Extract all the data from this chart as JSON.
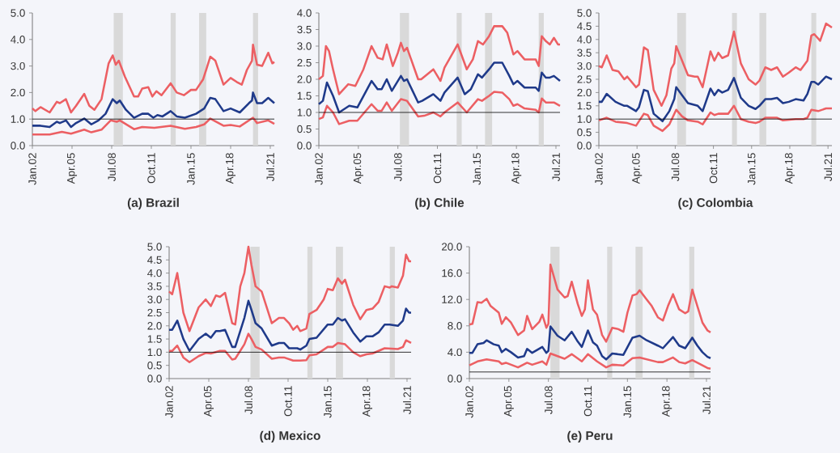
{
  "chart_data": [
    {
      "type": "line",
      "title": "(a) Brazil",
      "xlim": [
        "2002-01",
        "2021-11"
      ],
      "ylim": [
        0,
        5
      ],
      "xticks": [
        {
          "value": "2002-01",
          "label": "Jan.02"
        },
        {
          "value": "2005-04",
          "label": "Apr.05"
        },
        {
          "value": "2008-07",
          "label": "Jul.08"
        },
        {
          "value": "2011-10",
          "label": "Oct.11"
        },
        {
          "value": "2015-01",
          "label": "Jan.15"
        },
        {
          "value": "2018-04",
          "label": "Apr.18"
        },
        {
          "value": "2021-07",
          "label": "Jul.21"
        }
      ],
      "yticks": [
        {
          "value": 0,
          "label": "0.0"
        },
        {
          "value": 1,
          "label": "1.0"
        },
        {
          "value": 2,
          "label": "2.0"
        },
        {
          "value": 3,
          "label": "3.0"
        },
        {
          "value": 4,
          "label": "4.0"
        },
        {
          "value": 5,
          "label": "5.0"
        }
      ],
      "ref_lines": [
        {
          "axis": "y",
          "value": 1,
          "color": "#000000"
        }
      ],
      "bands": [
        {
          "axis": "x",
          "from": "2008-09",
          "to": "2009-06",
          "color": "#d9d9d9"
        },
        {
          "axis": "x",
          "from": "2013-05",
          "to": "2013-10",
          "color": "#d9d9d9"
        },
        {
          "axis": "x",
          "from": "2015-09",
          "to": "2016-04",
          "color": "#d9d9d9"
        },
        {
          "axis": "x",
          "from": "2020-02",
          "to": "2020-07",
          "color": "#d9d9d9"
        }
      ],
      "series": [
        {
          "color": "#ec5f63",
          "x": [
            "2002-01",
            "2002-04",
            "2002-09",
            "2003-06",
            "2004-01",
            "2004-04",
            "2004-10",
            "2005-03",
            "2005-08",
            "2006-04",
            "2006-09",
            "2007-02",
            "2007-09",
            "2008-04",
            "2008-08",
            "2008-11",
            "2009-02",
            "2009-08",
            "2010-05",
            "2010-09",
            "2011-01",
            "2011-07",
            "2011-11",
            "2012-03",
            "2012-08",
            "2013-05",
            "2013-11",
            "2014-06",
            "2015-01",
            "2015-06",
            "2016-01",
            "2016-08",
            "2017-01",
            "2017-09",
            "2018-04",
            "2018-10",
            "2019-03",
            "2019-08",
            "2020-01",
            "2020-02",
            "2020-06",
            "2020-11",
            "2021-05",
            "2021-09",
            "2021-11"
          ],
          "values": [
            1.4,
            1.3,
            1.45,
            1.25,
            1.65,
            1.6,
            1.75,
            1.25,
            1.5,
            1.95,
            1.5,
            1.35,
            1.75,
            3.1,
            3.4,
            3.05,
            3.2,
            2.6,
            1.85,
            1.85,
            2.15,
            2.2,
            1.85,
            2.05,
            1.9,
            2.35,
            2.0,
            1.9,
            2.1,
            2.1,
            2.5,
            3.35,
            3.2,
            2.3,
            2.55,
            2.4,
            2.3,
            2.85,
            3.2,
            3.8,
            3.05,
            3.0,
            3.5,
            3.1,
            3.15
          ]
        },
        {
          "color": "#1f3a8a",
          "x": [
            "2002-01",
            "2002-09",
            "2003-06",
            "2004-01",
            "2004-04",
            "2004-10",
            "2005-03",
            "2005-08",
            "2006-04",
            "2006-11",
            "2007-06",
            "2008-01",
            "2008-08",
            "2008-12",
            "2009-03",
            "2009-09",
            "2010-05",
            "2011-01",
            "2011-07",
            "2011-12",
            "2012-04",
            "2012-09",
            "2013-05",
            "2013-11",
            "2014-07",
            "2015-06",
            "2016-02",
            "2016-08",
            "2017-01",
            "2017-09",
            "2018-04",
            "2019-01",
            "2019-10",
            "2020-01",
            "2020-02",
            "2020-06",
            "2020-11",
            "2021-05",
            "2021-11"
          ],
          "values": [
            0.75,
            0.75,
            0.7,
            0.9,
            0.85,
            0.95,
            0.7,
            0.85,
            1.02,
            0.8,
            0.95,
            1.2,
            1.75,
            1.6,
            1.7,
            1.35,
            1.05,
            1.2,
            1.2,
            1.05,
            1.15,
            1.1,
            1.3,
            1.1,
            1.05,
            1.2,
            1.4,
            1.8,
            1.75,
            1.3,
            1.4,
            1.25,
            1.6,
            1.7,
            2.0,
            1.6,
            1.6,
            1.8,
            1.6
          ]
        },
        {
          "color": "#ec5f63",
          "x": [
            "2002-01",
            "2003-06",
            "2004-06",
            "2005-03",
            "2006-04",
            "2006-11",
            "2007-09",
            "2008-06",
            "2008-12",
            "2009-03",
            "2010-05",
            "2011-01",
            "2012-01",
            "2013-05",
            "2014-07",
            "2015-06",
            "2016-02",
            "2016-08",
            "2017-09",
            "2018-04",
            "2019-01",
            "2020-02",
            "2020-06",
            "2021-05",
            "2021-11"
          ],
          "values": [
            0.42,
            0.42,
            0.52,
            0.45,
            0.6,
            0.5,
            0.6,
            0.95,
            0.9,
            0.95,
            0.62,
            0.7,
            0.67,
            0.75,
            0.63,
            0.7,
            0.8,
            1.02,
            0.75,
            0.78,
            0.72,
            1.05,
            0.85,
            0.95,
            0.82
          ]
        }
      ]
    },
    {
      "type": "line",
      "title": "(b) Chile",
      "xlim": [
        "2002-01",
        "2021-11"
      ],
      "ylim": [
        0,
        4
      ],
      "xticks": [
        {
          "value": "2002-01",
          "label": "Jan.02"
        },
        {
          "value": "2005-04",
          "label": "Apr.05"
        },
        {
          "value": "2008-07",
          "label": "Jul.08"
        },
        {
          "value": "2011-10",
          "label": "Oct.11"
        },
        {
          "value": "2015-01",
          "label": "Jan.15"
        },
        {
          "value": "2018-04",
          "label": "Apr.18"
        },
        {
          "value": "2021-07",
          "label": "Jul.21"
        }
      ],
      "yticks": [
        {
          "value": 0,
          "label": "0.0"
        },
        {
          "value": 0.5,
          "label": "0.5"
        },
        {
          "value": 1,
          "label": "1.0"
        },
        {
          "value": 1.5,
          "label": "1.5"
        },
        {
          "value": 2,
          "label": "2.0"
        },
        {
          "value": 2.5,
          "label": "2.5"
        },
        {
          "value": 3,
          "label": "3.0"
        },
        {
          "value": 3.5,
          "label": "3.5"
        },
        {
          "value": 4,
          "label": "4.0"
        }
      ],
      "ref_lines": [
        {
          "axis": "y",
          "value": 1,
          "color": "#000000"
        }
      ],
      "bands": [
        {
          "axis": "x",
          "from": "2008-09",
          "to": "2009-06",
          "color": "#d9d9d9"
        },
        {
          "axis": "x",
          "from": "2013-05",
          "to": "2013-10",
          "color": "#d9d9d9"
        },
        {
          "axis": "x",
          "from": "2015-09",
          "to": "2016-04",
          "color": "#d9d9d9"
        },
        {
          "axis": "x",
          "from": "2020-02",
          "to": "2020-07",
          "color": "#d9d9d9"
        }
      ],
      "series": [
        {
          "color": "#ec5f63",
          "x": [
            "2002-01",
            "2002-05",
            "2002-08",
            "2002-11",
            "2003-03",
            "2003-09",
            "2004-06",
            "2005-01",
            "2005-09",
            "2006-05",
            "2006-11",
            "2007-04",
            "2007-08",
            "2008-02",
            "2008-07",
            "2008-10",
            "2009-01",
            "2009-04",
            "2010-03",
            "2010-06",
            "2011-06",
            "2012-01",
            "2012-05",
            "2013-06",
            "2014-03",
            "2014-09",
            "2015-02",
            "2015-07",
            "2016-01",
            "2016-06",
            "2017-02",
            "2017-07",
            "2018-01",
            "2018-05",
            "2018-12",
            "2019-11",
            "2020-02",
            "2020-05",
            "2020-09",
            "2021-01",
            "2021-05",
            "2021-09",
            "2021-11"
          ],
          "values": [
            2.0,
            2.1,
            3.0,
            2.85,
            2.3,
            1.55,
            1.85,
            1.8,
            2.3,
            3.0,
            2.65,
            2.6,
            3.05,
            2.4,
            2.8,
            3.1,
            2.85,
            2.95,
            2.0,
            2.0,
            2.3,
            1.95,
            2.35,
            3.05,
            2.3,
            2.6,
            3.15,
            3.05,
            3.3,
            3.6,
            3.6,
            3.4,
            2.75,
            2.85,
            2.6,
            2.6,
            2.4,
            3.3,
            3.15,
            3.05,
            3.25,
            3.05,
            3.05
          ]
        },
        {
          "color": "#1f3a8a",
          "x": [
            "2002-01",
            "2002-05",
            "2002-09",
            "2003-03",
            "2003-09",
            "2004-07",
            "2005-03",
            "2006-05",
            "2006-11",
            "2007-03",
            "2007-08",
            "2008-01",
            "2008-10",
            "2009-01",
            "2009-04",
            "2010-03",
            "2010-07",
            "2011-06",
            "2012-01",
            "2012-05",
            "2013-06",
            "2014-01",
            "2014-07",
            "2015-02",
            "2015-06",
            "2016-01",
            "2016-06",
            "2017-02",
            "2017-09",
            "2018-01",
            "2018-05",
            "2018-12",
            "2019-11",
            "2020-02",
            "2020-05",
            "2020-09",
            "2021-01",
            "2021-05",
            "2021-11"
          ],
          "values": [
            1.25,
            1.35,
            1.9,
            1.5,
            1.0,
            1.2,
            1.15,
            1.95,
            1.7,
            1.7,
            2.0,
            1.65,
            2.1,
            1.95,
            2.0,
            1.3,
            1.35,
            1.55,
            1.35,
            1.6,
            2.05,
            1.55,
            1.7,
            2.15,
            2.05,
            2.3,
            2.5,
            2.5,
            2.1,
            1.85,
            1.95,
            1.75,
            1.75,
            1.65,
            2.2,
            2.05,
            2.05,
            2.1,
            1.95
          ]
        },
        {
          "color": "#ec5f63",
          "x": [
            "2002-01",
            "2002-05",
            "2002-09",
            "2003-03",
            "2003-09",
            "2004-07",
            "2005-03",
            "2006-05",
            "2006-11",
            "2007-03",
            "2007-08",
            "2008-01",
            "2008-10",
            "2009-04",
            "2010-03",
            "2010-09",
            "2011-06",
            "2012-01",
            "2012-05",
            "2013-06",
            "2014-03",
            "2015-02",
            "2015-06",
            "2016-01",
            "2016-06",
            "2017-02",
            "2017-09",
            "2018-01",
            "2018-05",
            "2018-12",
            "2019-11",
            "2020-02",
            "2020-05",
            "2020-09",
            "2021-05",
            "2021-11"
          ],
          "values": [
            0.8,
            0.85,
            1.2,
            1.0,
            0.65,
            0.75,
            0.75,
            1.25,
            1.05,
            1.05,
            1.3,
            1.05,
            1.4,
            1.35,
            0.88,
            0.9,
            1.0,
            0.88,
            1.0,
            1.3,
            1.0,
            1.4,
            1.35,
            1.5,
            1.62,
            1.6,
            1.4,
            1.2,
            1.25,
            1.12,
            1.08,
            1.0,
            1.42,
            1.3,
            1.3,
            1.2
          ]
        }
      ]
    },
    {
      "type": "line",
      "title": "(c) Colombia",
      "xlim": [
        "2002-01",
        "2021-11"
      ],
      "ylim": [
        0,
        5
      ],
      "xticks": [
        {
          "value": "2002-01",
          "label": "Jan.02"
        },
        {
          "value": "2005-04",
          "label": "Apr.05"
        },
        {
          "value": "2008-07",
          "label": "Jul.08"
        },
        {
          "value": "2011-10",
          "label": "Oct.11"
        },
        {
          "value": "2015-01",
          "label": "Jan.15"
        },
        {
          "value": "2018-04",
          "label": "Apr.18"
        },
        {
          "value": "2021-07",
          "label": "Jul.21"
        }
      ],
      "yticks": [
        {
          "value": 0,
          "label": "0.0"
        },
        {
          "value": 0.5,
          "label": "0.5"
        },
        {
          "value": 1,
          "label": "1.0"
        },
        {
          "value": 1.5,
          "label": "1.5"
        },
        {
          "value": 2,
          "label": "2.0"
        },
        {
          "value": 2.5,
          "label": "2.5"
        },
        {
          "value": 3,
          "label": "3.0"
        },
        {
          "value": 3.5,
          "label": "3.5"
        },
        {
          "value": 4,
          "label": "4.0"
        },
        {
          "value": 4.5,
          "label": "4.5"
        },
        {
          "value": 5,
          "label": "5.0"
        }
      ],
      "ref_lines": [
        {
          "axis": "y",
          "value": 1,
          "color": "#000000"
        }
      ],
      "bands": [
        {
          "axis": "x",
          "from": "2008-09",
          "to": "2009-06",
          "color": "#d9d9d9"
        },
        {
          "axis": "x",
          "from": "2013-05",
          "to": "2013-10",
          "color": "#d9d9d9"
        },
        {
          "axis": "x",
          "from": "2015-09",
          "to": "2016-04",
          "color": "#d9d9d9"
        },
        {
          "axis": "x",
          "from": "2020-02",
          "to": "2020-07",
          "color": "#d9d9d9"
        }
      ],
      "series": [
        {
          "color": "#ec5f63",
          "x": [
            "2002-01",
            "2002-04",
            "2002-09",
            "2003-03",
            "2003-09",
            "2004-03",
            "2004-06",
            "2005-03",
            "2005-06",
            "2005-11",
            "2006-03",
            "2006-09",
            "2007-05",
            "2007-10",
            "2008-03",
            "2008-06",
            "2008-08",
            "2009-02",
            "2009-08",
            "2010-03",
            "2010-06",
            "2010-11",
            "2011-07",
            "2011-11",
            "2012-03",
            "2012-07",
            "2013-01",
            "2013-07",
            "2014-02",
            "2014-10",
            "2015-05",
            "2015-09",
            "2016-03",
            "2016-09",
            "2017-03",
            "2017-09",
            "2018-03",
            "2018-10",
            "2019-03",
            "2019-10",
            "2020-02",
            "2020-05",
            "2020-11",
            "2021-05",
            "2021-11"
          ],
          "values": [
            3.0,
            2.95,
            3.4,
            2.85,
            2.8,
            2.5,
            2.6,
            2.2,
            2.3,
            3.7,
            3.6,
            2.1,
            1.5,
            1.9,
            2.9,
            3.1,
            3.75,
            3.2,
            2.65,
            2.6,
            2.6,
            2.2,
            3.55,
            3.2,
            3.5,
            3.3,
            3.4,
            4.3,
            3.1,
            2.5,
            2.3,
            2.45,
            2.95,
            2.85,
            2.95,
            2.6,
            2.75,
            2.95,
            2.85,
            3.2,
            4.15,
            4.2,
            3.95,
            4.6,
            4.45
          ]
        },
        {
          "color": "#1f3a8a",
          "x": [
            "2002-01",
            "2002-04",
            "2002-09",
            "2003-06",
            "2004-03",
            "2004-06",
            "2005-03",
            "2005-06",
            "2005-11",
            "2006-03",
            "2006-09",
            "2007-06",
            "2008-01",
            "2008-06",
            "2008-08",
            "2009-02",
            "2009-08",
            "2010-06",
            "2010-11",
            "2011-07",
            "2011-11",
            "2012-03",
            "2012-07",
            "2013-01",
            "2013-07",
            "2014-02",
            "2014-10",
            "2015-05",
            "2015-09",
            "2016-03",
            "2016-09",
            "2017-03",
            "2017-09",
            "2018-03",
            "2018-10",
            "2019-06",
            "2019-10",
            "2020-02",
            "2020-05",
            "2020-09",
            "2021-05",
            "2021-11"
          ],
          "values": [
            1.65,
            1.65,
            1.95,
            1.65,
            1.5,
            1.5,
            1.3,
            1.45,
            2.1,
            2.05,
            1.2,
            0.92,
            1.3,
            1.75,
            2.2,
            1.9,
            1.6,
            1.5,
            1.3,
            2.15,
            1.9,
            2.1,
            2.0,
            2.1,
            2.55,
            1.8,
            1.5,
            1.38,
            1.5,
            1.75,
            1.75,
            1.8,
            1.6,
            1.65,
            1.75,
            1.7,
            1.95,
            2.4,
            2.4,
            2.3,
            2.6,
            2.5
          ]
        },
        {
          "color": "#ec5f63",
          "x": [
            "2002-01",
            "2002-09",
            "2003-06",
            "2004-06",
            "2005-03",
            "2005-11",
            "2006-03",
            "2006-09",
            "2007-06",
            "2008-01",
            "2008-08",
            "2009-02",
            "2009-08",
            "2010-06",
            "2010-11",
            "2011-07",
            "2011-11",
            "2012-03",
            "2013-01",
            "2013-07",
            "2014-02",
            "2014-10",
            "2015-05",
            "2015-09",
            "2016-03",
            "2017-03",
            "2017-09",
            "2018-10",
            "2019-06",
            "2019-10",
            "2020-02",
            "2020-09",
            "2021-05",
            "2021-11"
          ],
          "values": [
            0.95,
            1.05,
            0.9,
            0.85,
            0.75,
            1.2,
            1.15,
            0.75,
            0.55,
            0.8,
            1.35,
            1.1,
            0.95,
            0.9,
            0.8,
            1.25,
            1.15,
            1.2,
            1.2,
            1.5,
            1.0,
            0.9,
            0.85,
            0.9,
            1.05,
            1.05,
            0.95,
            1.0,
            1.0,
            1.05,
            1.35,
            1.3,
            1.4,
            1.4
          ]
        }
      ]
    },
    {
      "type": "line",
      "title": "(d) Mexico",
      "xlim": [
        "2002-01",
        "2021-11"
      ],
      "ylim": [
        0,
        5
      ],
      "xticks": [
        {
          "value": "2002-01",
          "label": "Jan.02"
        },
        {
          "value": "2005-04",
          "label": "Apr.05"
        },
        {
          "value": "2008-07",
          "label": "Jul.08"
        },
        {
          "value": "2011-10",
          "label": "Oct.11"
        },
        {
          "value": "2015-01",
          "label": "Jan.15"
        },
        {
          "value": "2018-04",
          "label": "Apr.18"
        },
        {
          "value": "2021-07",
          "label": "Jul.21"
        }
      ],
      "yticks": [
        {
          "value": 0,
          "label": "0.0"
        },
        {
          "value": 0.5,
          "label": "0.5"
        },
        {
          "value": 1,
          "label": "1.0"
        },
        {
          "value": 1.5,
          "label": "1.5"
        },
        {
          "value": 2,
          "label": "2.0"
        },
        {
          "value": 2.5,
          "label": "2.5"
        },
        {
          "value": 3,
          "label": "3.0"
        },
        {
          "value": 3.5,
          "label": "3.5"
        },
        {
          "value": 4,
          "label": "4.0"
        },
        {
          "value": 4.5,
          "label": "4.5"
        },
        {
          "value": 5,
          "label": "5.0"
        }
      ],
      "ref_lines": [
        {
          "axis": "y",
          "value": 1,
          "color": "#000000"
        }
      ],
      "bands": [
        {
          "axis": "x",
          "from": "2008-09",
          "to": "2009-06",
          "color": "#d9d9d9"
        },
        {
          "axis": "x",
          "from": "2013-05",
          "to": "2013-10",
          "color": "#d9d9d9"
        },
        {
          "axis": "x",
          "from": "2015-09",
          "to": "2016-04",
          "color": "#d9d9d9"
        },
        {
          "axis": "x",
          "from": "2020-02",
          "to": "2020-07",
          "color": "#d9d9d9"
        }
      ],
      "series": [
        {
          "color": "#ec5f63",
          "x": [
            "2002-01",
            "2002-04",
            "2002-09",
            "2003-03",
            "2003-09",
            "2004-06",
            "2005-01",
            "2005-06",
            "2005-11",
            "2006-03",
            "2006-08",
            "2007-03",
            "2007-06",
            "2007-11",
            "2008-03",
            "2008-07",
            "2008-10",
            "2009-02",
            "2009-08",
            "2010-06",
            "2011-01",
            "2011-06",
            "2011-11",
            "2012-03",
            "2012-07",
            "2012-10",
            "2013-04",
            "2013-07",
            "2014-02",
            "2014-09",
            "2015-01",
            "2015-06",
            "2015-11",
            "2016-03",
            "2016-06",
            "2017-02",
            "2017-09",
            "2018-03",
            "2018-09",
            "2019-03",
            "2019-09",
            "2020-02",
            "2020-04",
            "2020-10",
            "2021-03",
            "2021-06",
            "2021-09",
            "2021-11"
          ],
          "values": [
            3.3,
            3.2,
            4.0,
            2.5,
            1.8,
            2.7,
            3.0,
            2.75,
            3.15,
            3.1,
            3.25,
            2.1,
            2.05,
            3.5,
            4.0,
            5.0,
            4.3,
            3.5,
            3.3,
            2.1,
            2.3,
            2.3,
            2.1,
            1.85,
            2.0,
            1.8,
            1.9,
            2.45,
            2.6,
            3.0,
            3.4,
            3.35,
            3.8,
            3.6,
            3.75,
            2.8,
            2.25,
            2.6,
            2.65,
            2.9,
            3.5,
            3.45,
            3.5,
            3.45,
            3.9,
            4.7,
            4.45,
            4.45
          ]
        },
        {
          "color": "#1f3a8a",
          "x": [
            "2002-01",
            "2002-04",
            "2002-09",
            "2003-03",
            "2003-09",
            "2004-06",
            "2005-01",
            "2005-06",
            "2005-11",
            "2006-03",
            "2006-08",
            "2007-03",
            "2007-06",
            "2008-03",
            "2008-07",
            "2008-10",
            "2009-02",
            "2009-08",
            "2010-06",
            "2011-01",
            "2011-06",
            "2011-11",
            "2012-03",
            "2012-07",
            "2012-10",
            "2013-04",
            "2013-07",
            "2014-02",
            "2015-01",
            "2015-06",
            "2015-11",
            "2016-03",
            "2016-06",
            "2017-02",
            "2017-09",
            "2018-03",
            "2018-09",
            "2019-03",
            "2019-09",
            "2020-02",
            "2020-10",
            "2021-03",
            "2021-06",
            "2021-09",
            "2021-11"
          ],
          "values": [
            1.85,
            1.85,
            2.2,
            1.5,
            1.05,
            1.5,
            1.7,
            1.55,
            1.8,
            1.8,
            1.85,
            1.2,
            1.2,
            2.3,
            2.95,
            2.6,
            2.1,
            1.9,
            1.25,
            1.35,
            1.35,
            1.15,
            1.15,
            1.15,
            1.1,
            1.25,
            1.5,
            1.55,
            2.05,
            2.05,
            2.3,
            2.2,
            2.25,
            1.75,
            1.4,
            1.6,
            1.6,
            1.75,
            2.05,
            2.05,
            2.0,
            2.2,
            2.65,
            2.5,
            2.5
          ]
        },
        {
          "color": "#ec5f63",
          "x": [
            "2002-01",
            "2002-04",
            "2002-09",
            "2003-03",
            "2003-09",
            "2004-06",
            "2005-01",
            "2005-06",
            "2006-03",
            "2006-08",
            "2007-03",
            "2007-06",
            "2008-03",
            "2008-07",
            "2008-10",
            "2009-02",
            "2009-08",
            "2010-06",
            "2011-01",
            "2011-06",
            "2012-03",
            "2012-10",
            "2013-04",
            "2013-07",
            "2014-02",
            "2015-01",
            "2015-06",
            "2015-11",
            "2016-06",
            "2017-02",
            "2017-09",
            "2018-03",
            "2018-09",
            "2019-09",
            "2020-10",
            "2021-03",
            "2021-06",
            "2021-11"
          ],
          "values": [
            1.05,
            1.05,
            1.25,
            0.8,
            0.62,
            0.85,
            0.97,
            0.95,
            1.05,
            1.05,
            0.72,
            0.75,
            1.3,
            1.7,
            1.5,
            1.2,
            1.1,
            0.75,
            0.8,
            0.8,
            0.68,
            0.68,
            0.7,
            0.88,
            0.92,
            1.2,
            1.2,
            1.35,
            1.3,
            1.0,
            0.85,
            0.92,
            0.95,
            1.15,
            1.12,
            1.2,
            1.45,
            1.35
          ]
        }
      ]
    },
    {
      "type": "line",
      "title": "(e) Peru",
      "xlim": [
        "2002-01",
        "2021-11"
      ],
      "ylim": [
        0,
        20
      ],
      "xticks": [
        {
          "value": "2002-01",
          "label": "Jan.02"
        },
        {
          "value": "2005-04",
          "label": "Apr.05"
        },
        {
          "value": "2008-07",
          "label": "Jul.08"
        },
        {
          "value": "2011-10",
          "label": "Oct.11"
        },
        {
          "value": "2015-01",
          "label": "Jan.15"
        },
        {
          "value": "2018-04",
          "label": "Apr.18"
        },
        {
          "value": "2021-07",
          "label": "Jul.21"
        }
      ],
      "yticks": [
        {
          "value": 0,
          "label": "0.0"
        },
        {
          "value": 4,
          "label": "4.0"
        },
        {
          "value": 8,
          "label": "8.0"
        },
        {
          "value": 12,
          "label": "12.0"
        },
        {
          "value": 16,
          "label": "16.0"
        },
        {
          "value": 20,
          "label": "20.0"
        }
      ],
      "ref_lines": [
        {
          "axis": "y",
          "value": 1,
          "color": "#000000"
        }
      ],
      "bands": [
        {
          "axis": "x",
          "from": "2008-09",
          "to": "2009-06",
          "color": "#d9d9d9"
        },
        {
          "axis": "x",
          "from": "2013-05",
          "to": "2013-10",
          "color": "#d9d9d9"
        },
        {
          "axis": "x",
          "from": "2015-09",
          "to": "2016-04",
          "color": "#d9d9d9"
        },
        {
          "axis": "x",
          "from": "2020-02",
          "to": "2020-07",
          "color": "#d9d9d9"
        }
      ],
      "series": [
        {
          "color": "#ec5f63",
          "x": [
            "2002-01",
            "2002-04",
            "2002-09",
            "2003-01",
            "2003-06",
            "2003-10",
            "2004-06",
            "2004-09",
            "2005-01",
            "2005-06",
            "2006-01",
            "2006-07",
            "2006-10",
            "2007-03",
            "2007-10",
            "2008-01",
            "2008-05",
            "2008-07",
            "2008-09",
            "2009-04",
            "2009-11",
            "2010-02",
            "2010-06",
            "2010-12",
            "2011-04",
            "2011-07",
            "2011-10",
            "2012-03",
            "2012-07",
            "2012-12",
            "2013-04",
            "2013-10",
            "2014-04",
            "2014-09",
            "2015-01",
            "2015-06",
            "2015-10",
            "2016-01",
            "2016-08",
            "2017-01",
            "2017-07",
            "2017-12",
            "2018-05",
            "2018-10",
            "2019-04",
            "2019-10",
            "2020-01",
            "2020-05",
            "2020-10",
            "2021-03",
            "2021-08",
            "2021-11"
          ],
          "values": [
            8.2,
            8.3,
            11.6,
            11.5,
            12.1,
            11.0,
            10.0,
            8.3,
            9.3,
            8.5,
            6.6,
            7.3,
            9.5,
            7.5,
            8.6,
            9.7,
            7.7,
            8.3,
            17.3,
            13.5,
            12.3,
            12.5,
            14.7,
            11.3,
            9.5,
            10.5,
            14.9,
            10.5,
            9.7,
            6.6,
            5.6,
            7.7,
            7.5,
            7.1,
            10.0,
            12.6,
            12.8,
            13.4,
            12.0,
            11.0,
            9.3,
            8.8,
            11.0,
            12.8,
            10.5,
            9.9,
            10.2,
            13.5,
            11.0,
            8.5,
            7.3,
            7.0
          ]
        },
        {
          "color": "#1f3a8a",
          "x": [
            "2002-01",
            "2002-04",
            "2002-09",
            "2003-03",
            "2003-06",
            "2004-01",
            "2004-06",
            "2004-09",
            "2005-01",
            "2005-06",
            "2006-01",
            "2006-07",
            "2006-10",
            "2007-03",
            "2008-01",
            "2008-05",
            "2008-07",
            "2008-09",
            "2009-04",
            "2009-11",
            "2010-06",
            "2010-12",
            "2011-04",
            "2011-10",
            "2012-03",
            "2012-07",
            "2012-12",
            "2013-04",
            "2013-10",
            "2014-09",
            "2015-06",
            "2016-01",
            "2016-08",
            "2017-07",
            "2017-12",
            "2018-10",
            "2019-04",
            "2019-10",
            "2020-05",
            "2020-10",
            "2021-03",
            "2021-08",
            "2021-11"
          ],
          "values": [
            3.9,
            3.9,
            5.2,
            5.4,
            5.8,
            5.2,
            5.0,
            4.0,
            4.5,
            4.0,
            3.2,
            3.4,
            4.5,
            3.9,
            4.8,
            3.9,
            4.2,
            7.9,
            6.5,
            5.8,
            7.1,
            5.6,
            4.8,
            7.3,
            5.5,
            5.0,
            3.4,
            2.9,
            3.8,
            3.6,
            6.2,
            6.5,
            5.8,
            5.0,
            4.6,
            6.3,
            5.0,
            4.6,
            6.2,
            5.0,
            4.0,
            3.3,
            3.1
          ]
        },
        {
          "color": "#ec5f63",
          "x": [
            "2002-01",
            "2002-09",
            "2003-06",
            "2004-06",
            "2004-09",
            "2005-01",
            "2006-01",
            "2006-10",
            "2007-03",
            "2008-01",
            "2008-05",
            "2008-09",
            "2009-11",
            "2010-06",
            "2011-04",
            "2011-10",
            "2012-07",
            "2013-04",
            "2013-10",
            "2014-09",
            "2015-06",
            "2016-01",
            "2017-07",
            "2017-12",
            "2018-10",
            "2019-04",
            "2019-10",
            "2020-05",
            "2021-03",
            "2021-08",
            "2021-11"
          ],
          "values": [
            2.0,
            2.6,
            2.9,
            2.6,
            2.2,
            2.4,
            1.7,
            2.4,
            2.1,
            2.6,
            2.1,
            3.8,
            3.0,
            3.7,
            2.6,
            3.7,
            2.6,
            1.7,
            2.1,
            2.0,
            3.1,
            3.2,
            2.5,
            2.5,
            3.2,
            2.5,
            2.3,
            2.8,
            2.0,
            1.6,
            1.5
          ]
        }
      ]
    }
  ]
}
